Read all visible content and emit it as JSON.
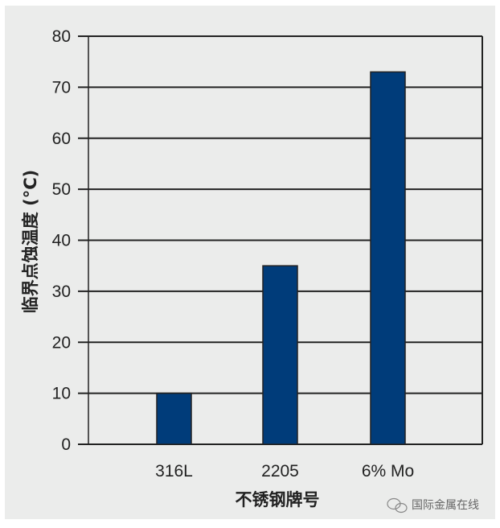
{
  "chart_data": {
    "type": "bar",
    "categories": [
      "316L",
      "2205",
      "6% Mo"
    ],
    "values": [
      10,
      35,
      73
    ],
    "xlabel": "不锈钢牌号",
    "ylabel": "临界点蚀温度 (°C)",
    "ylim": [
      0,
      80
    ],
    "yticks": [
      0,
      10,
      20,
      30,
      40,
      50,
      60,
      70,
      80
    ],
    "grid": true,
    "bar_color": "#003c7a",
    "background_color": "#ebeceb"
  },
  "watermark": {
    "text": "国际金属在线",
    "icon": "wechat-icon"
  }
}
